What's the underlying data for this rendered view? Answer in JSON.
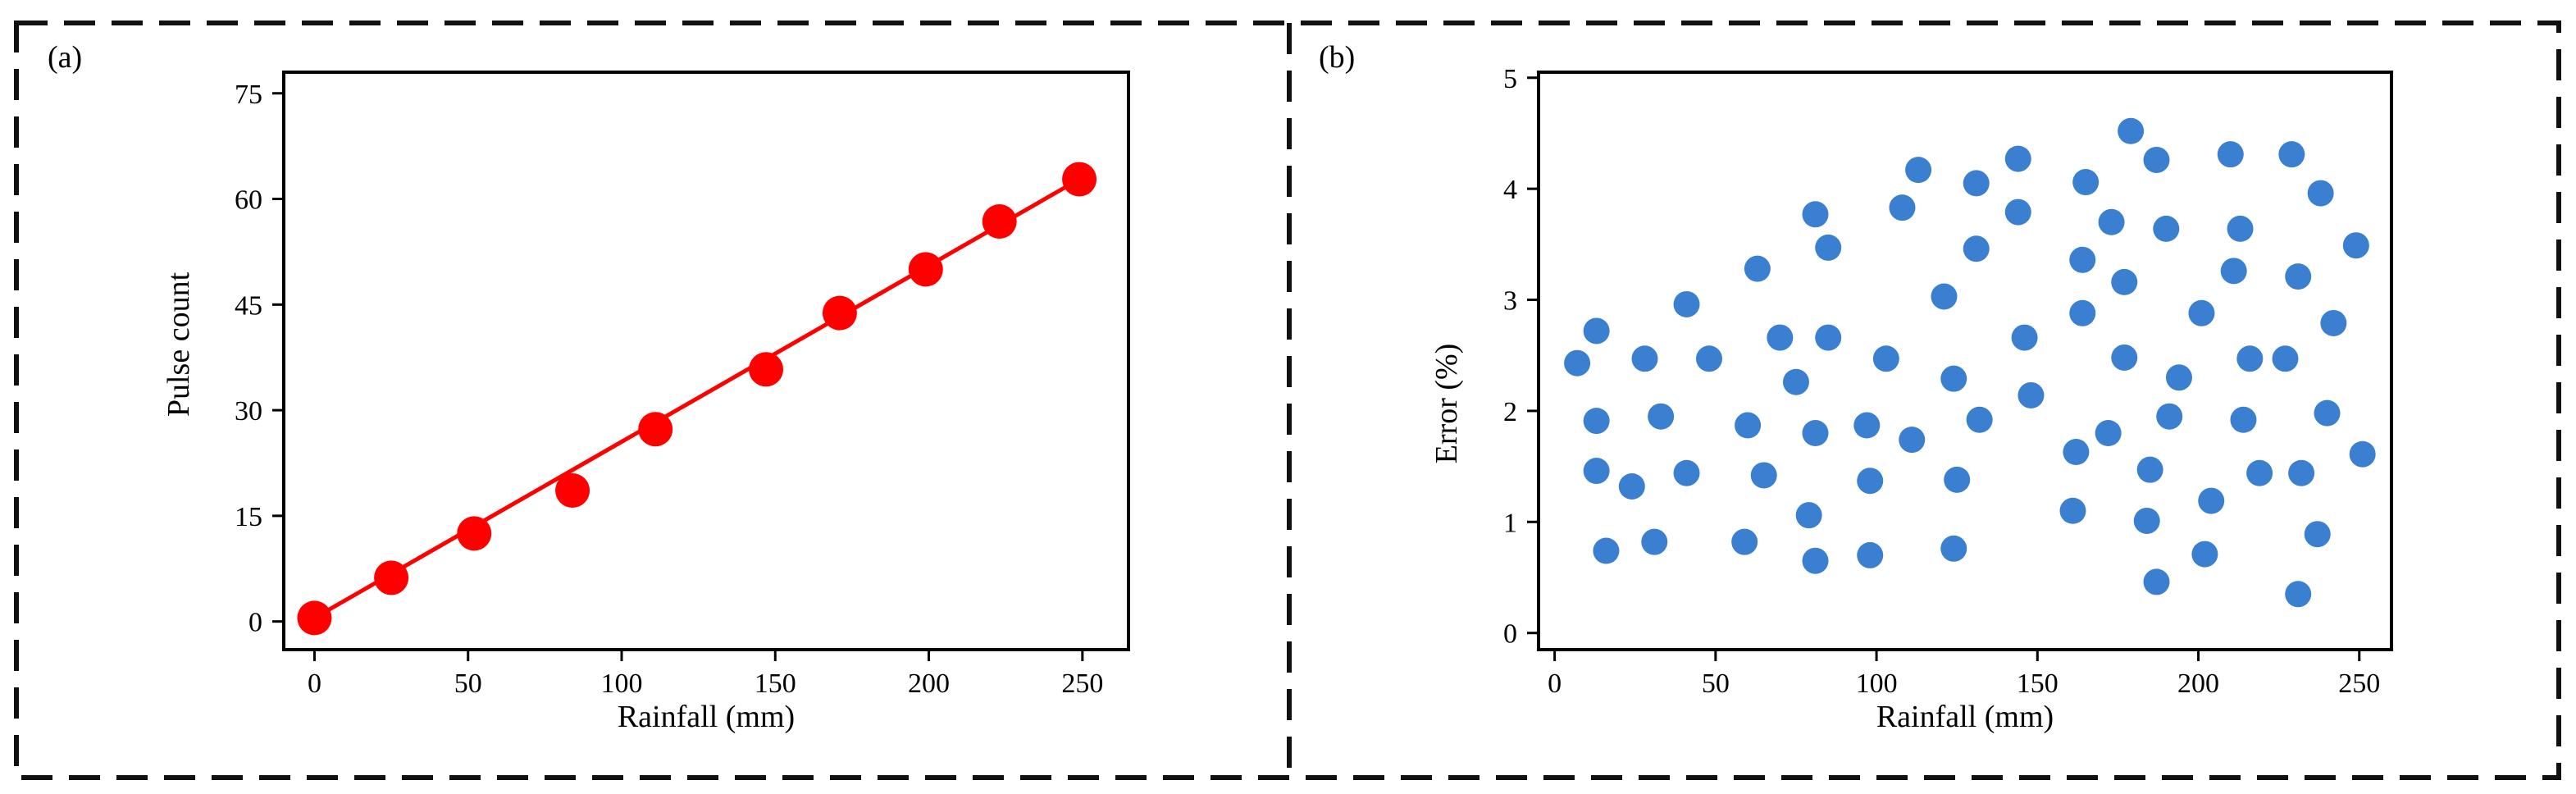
{
  "chart_data": [
    {
      "panel_label": "(a)",
      "type": "line",
      "xlabel": "Rainfall (mm)",
      "ylabel": "Pulse count",
      "xlim": [
        -10,
        265
      ],
      "ylim": [
        -4,
        78
      ],
      "xticks": [
        0,
        50,
        100,
        150,
        200,
        250
      ],
      "yticks": [
        0,
        15,
        30,
        45,
        60,
        75
      ],
      "grid": false,
      "series": [
        {
          "color": "#ff0000",
          "marker": "circle",
          "x": [
            0,
            25,
            52,
            84,
            111,
            147,
            171,
            199,
            223,
            249
          ],
          "y": [
            0.5,
            6.2,
            12.5,
            18.6,
            27.3,
            35.8,
            43.8,
            50.0,
            56.8,
            62.8
          ],
          "fit_line": [
            [
              0,
              0.5
            ],
            [
              249,
              62.8
            ]
          ]
        }
      ]
    },
    {
      "panel_label": "(b)",
      "type": "scatter",
      "xlabel": "Rainfall (mm)",
      "ylabel": "Error (%)",
      "xlim": [
        -5,
        260
      ],
      "ylim": [
        -0.15,
        5.05
      ],
      "xticks": [
        0,
        50,
        100,
        150,
        200,
        250
      ],
      "yticks": [
        0,
        1,
        2,
        3,
        4,
        5
      ],
      "grid": false,
      "series": [
        {
          "color": "#3a7fd0",
          "marker": "circle",
          "points": [
            [
              7,
              2.43
            ],
            [
              13,
              2.72
            ],
            [
              13,
              1.91
            ],
            [
              13,
              1.46
            ],
            [
              16,
              0.74
            ],
            [
              24,
              1.32
            ],
            [
              28,
              2.47
            ],
            [
              31,
              0.82
            ],
            [
              33,
              1.95
            ],
            [
              41,
              2.96
            ],
            [
              41,
              1.44
            ],
            [
              48,
              2.47
            ],
            [
              59,
              0.82
            ],
            [
              60,
              1.87
            ],
            [
              63,
              3.28
            ],
            [
              65,
              1.42
            ],
            [
              70,
              2.66
            ],
            [
              75,
              2.26
            ],
            [
              79,
              1.06
            ],
            [
              81,
              3.77
            ],
            [
              81,
              1.8
            ],
            [
              81,
              0.65
            ],
            [
              85,
              3.47
            ],
            [
              85,
              2.66
            ],
            [
              97,
              1.87
            ],
            [
              98,
              0.7
            ],
            [
              98,
              1.37
            ],
            [
              103,
              2.47
            ],
            [
              108,
              3.83
            ],
            [
              111,
              1.74
            ],
            [
              113,
              4.17
            ],
            [
              121,
              3.03
            ],
            [
              124,
              2.29
            ],
            [
              124,
              0.76
            ],
            [
              125,
              1.38
            ],
            [
              131,
              4.05
            ],
            [
              131,
              3.46
            ],
            [
              132,
              1.92
            ],
            [
              144,
              4.27
            ],
            [
              144,
              3.79
            ],
            [
              146,
              2.66
            ],
            [
              148,
              2.14
            ],
            [
              161,
              1.1
            ],
            [
              162,
              1.63
            ],
            [
              164,
              3.36
            ],
            [
              164,
              2.88
            ],
            [
              165,
              4.06
            ],
            [
              172,
              1.8
            ],
            [
              173,
              3.7
            ],
            [
              177,
              3.16
            ],
            [
              177,
              2.48
            ],
            [
              179,
              4.52
            ],
            [
              184,
              1.01
            ],
            [
              185,
              1.47
            ],
            [
              187,
              0.46
            ],
            [
              187,
              4.26
            ],
            [
              190,
              3.64
            ],
            [
              191,
              1.95
            ],
            [
              194,
              2.3
            ],
            [
              201,
              2.88
            ],
            [
              202,
              0.71
            ],
            [
              204,
              1.19
            ],
            [
              210,
              4.31
            ],
            [
              211,
              3.26
            ],
            [
              213,
              3.64
            ],
            [
              214,
              1.92
            ],
            [
              216,
              2.47
            ],
            [
              219,
              1.44
            ],
            [
              227,
              2.47
            ],
            [
              229,
              4.31
            ],
            [
              231,
              0.35
            ],
            [
              231,
              3.21
            ],
            [
              232,
              1.44
            ],
            [
              237,
              0.89
            ],
            [
              238,
              3.96
            ],
            [
              240,
              1.98
            ],
            [
              242,
              2.79
            ],
            [
              249,
              3.49
            ],
            [
              251,
              1.61
            ]
          ]
        }
      ]
    }
  ]
}
